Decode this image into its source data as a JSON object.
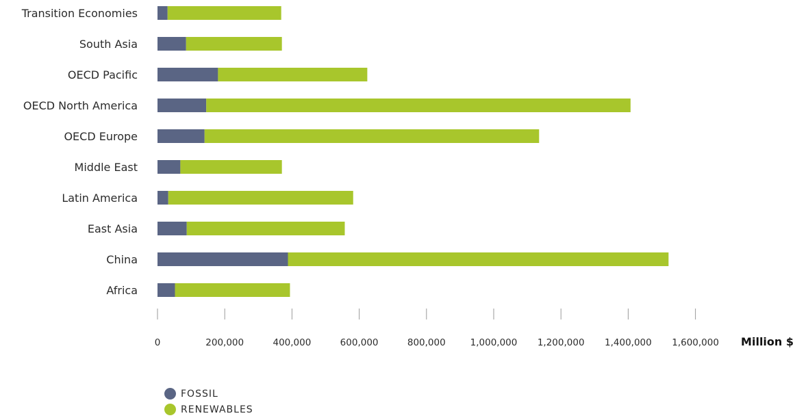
{
  "chart_data": {
    "type": "bar",
    "orientation": "horizontal",
    "stacked": true,
    "categories": [
      "Transition Economies",
      "South Asia",
      "OECD Pacific",
      "OECD North America",
      "OECD Europe",
      "Middle East",
      "Latin America",
      "East Asia",
      "China",
      "Africa"
    ],
    "series": [
      {
        "name": "FOSSIL",
        "color": "#5a6584",
        "values": [
          30000,
          85000,
          180000,
          145000,
          140000,
          68000,
          32000,
          87000,
          388000,
          52000
        ]
      },
      {
        "name": "RENEWABLES",
        "color": "#a8c62c",
        "values": [
          338000,
          285000,
          444000,
          1262000,
          995000,
          302000,
          550000,
          470000,
          1132000,
          342000
        ]
      }
    ],
    "xlim": [
      0,
      1600000
    ],
    "xticks": [
      0,
      200000,
      400000,
      600000,
      800000,
      1000000,
      1200000,
      1400000,
      1600000
    ],
    "xtick_labels": [
      "0",
      "200,000",
      "400,000",
      "600,000",
      "800,000",
      "1,000,000",
      "1,200,000",
      "1,400,000",
      "1,600,000"
    ],
    "xlabel": "Million $",
    "grid": false,
    "legend_position": "bottom-left"
  }
}
